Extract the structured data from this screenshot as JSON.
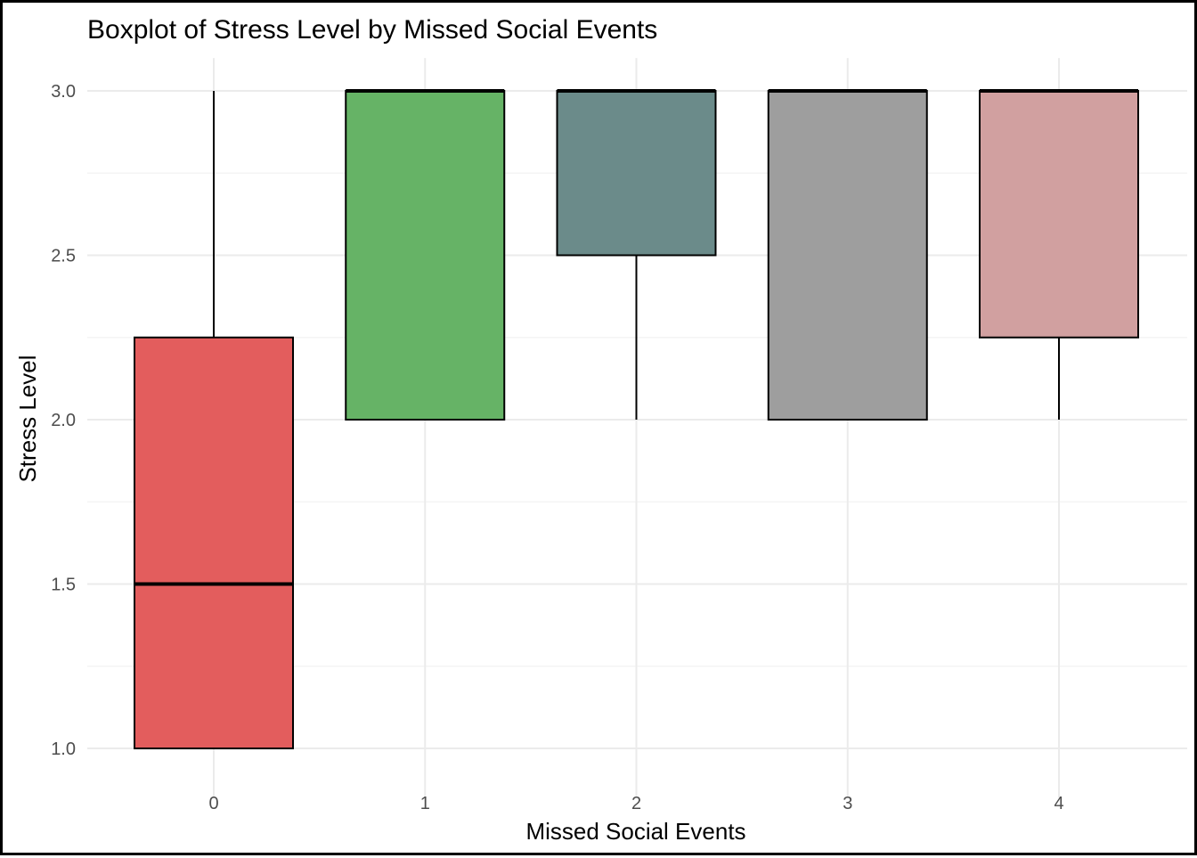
{
  "chart_data": {
    "type": "boxplot",
    "title": "Boxplot of Stress Level by Missed Social Events",
    "xlabel": "Missed Social Events",
    "ylabel": "Stress Level",
    "categories": [
      "0",
      "1",
      "2",
      "3",
      "4"
    ],
    "ylim": [
      0.85,
      3.1
    ],
    "yticks": [
      1.0,
      1.5,
      2.0,
      2.5,
      3.0
    ],
    "ytick_labels": [
      "1.0",
      "1.5",
      "2.0",
      "2.5",
      "3.0"
    ],
    "grid": true,
    "boxes": [
      {
        "category": "0",
        "min": 1.0,
        "q1": 1.0,
        "median": 1.5,
        "q3": 2.25,
        "max": 3.0,
        "color": "#e35d5d"
      },
      {
        "category": "1",
        "min": 2.0,
        "q1": 2.0,
        "median": 3.0,
        "q3": 3.0,
        "max": 3.0,
        "color": "#66b366"
      },
      {
        "category": "2",
        "min": 2.0,
        "q1": 2.5,
        "median": 3.0,
        "q3": 3.0,
        "max": 3.0,
        "color": "#6b8b8a"
      },
      {
        "category": "3",
        "min": 2.0,
        "q1": 2.0,
        "median": 3.0,
        "q3": 3.0,
        "max": 3.0,
        "color": "#9e9e9e"
      },
      {
        "category": "4",
        "min": 2.0,
        "q1": 2.25,
        "median": 3.0,
        "q3": 3.0,
        "max": 3.0,
        "color": "#d1a0a0"
      }
    ]
  }
}
